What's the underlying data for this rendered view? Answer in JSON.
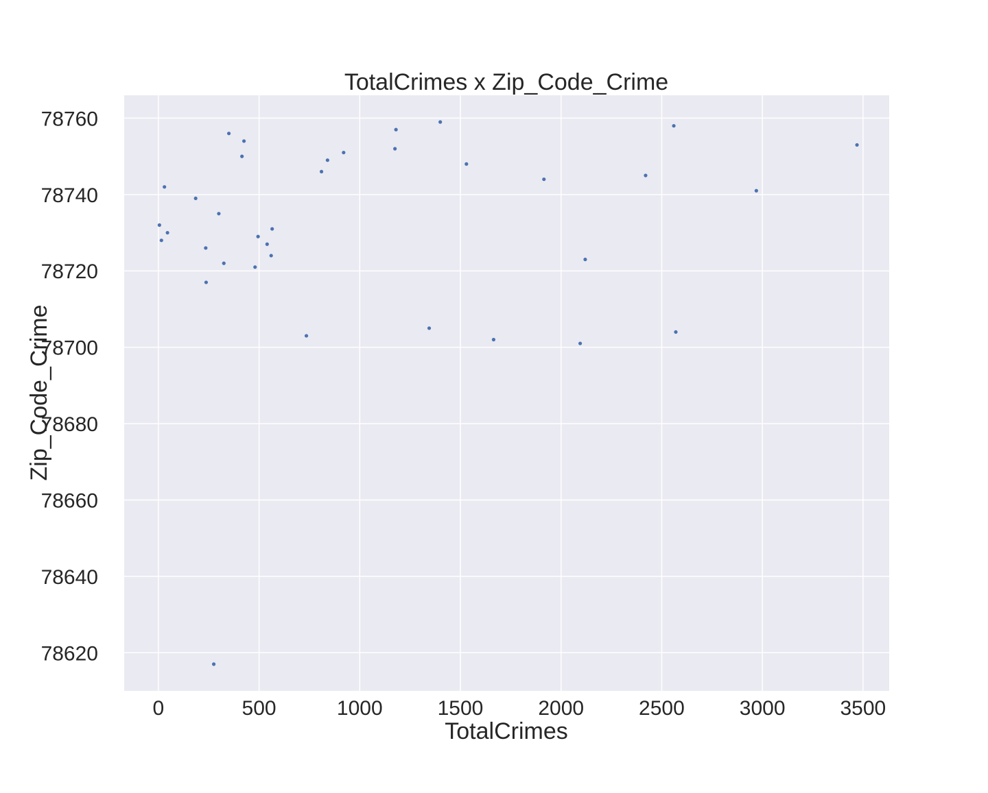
{
  "chart_data": {
    "type": "scatter",
    "title": "TotalCrimes x Zip_Code_Crime",
    "xlabel": "TotalCrimes",
    "ylabel": "Zip_Code_Crime",
    "xlim": [
      -170,
      3630
    ],
    "ylim": [
      78610,
      78766
    ],
    "xticks": [
      0,
      500,
      1000,
      1500,
      2000,
      2500,
      3000,
      3500
    ],
    "yticks": [
      78620,
      78640,
      78660,
      78680,
      78700,
      78720,
      78740,
      78760
    ],
    "grid": true,
    "legend": "none",
    "style": {
      "plot_background": "#eaeaf2",
      "grid_color": "#ffffff",
      "point_color": "#4c72b0"
    },
    "series": [
      {
        "points": [
          [
            5,
            78732
          ],
          [
            15,
            78728
          ],
          [
            30,
            78742
          ],
          [
            45,
            78730
          ],
          [
            185,
            78739
          ],
          [
            235,
            78726
          ],
          [
            237,
            78717
          ],
          [
            275,
            78617
          ],
          [
            300,
            78735
          ],
          [
            325,
            78722
          ],
          [
            350,
            78756
          ],
          [
            415,
            78750
          ],
          [
            425,
            78754
          ],
          [
            480,
            78721
          ],
          [
            495,
            78729
          ],
          [
            540,
            78727
          ],
          [
            560,
            78724
          ],
          [
            565,
            78731
          ],
          [
            735,
            78703
          ],
          [
            810,
            78746
          ],
          [
            840,
            78749
          ],
          [
            920,
            78751
          ],
          [
            1175,
            78752
          ],
          [
            1180,
            78757
          ],
          [
            1345,
            78705
          ],
          [
            1400,
            78759
          ],
          [
            1530,
            78748
          ],
          [
            1665,
            78702
          ],
          [
            1915,
            78744
          ],
          [
            2095,
            78701
          ],
          [
            2120,
            78723
          ],
          [
            2420,
            78745
          ],
          [
            2560,
            78758
          ],
          [
            2570,
            78704
          ],
          [
            2970,
            78741
          ],
          [
            3470,
            78753
          ]
        ]
      }
    ]
  }
}
